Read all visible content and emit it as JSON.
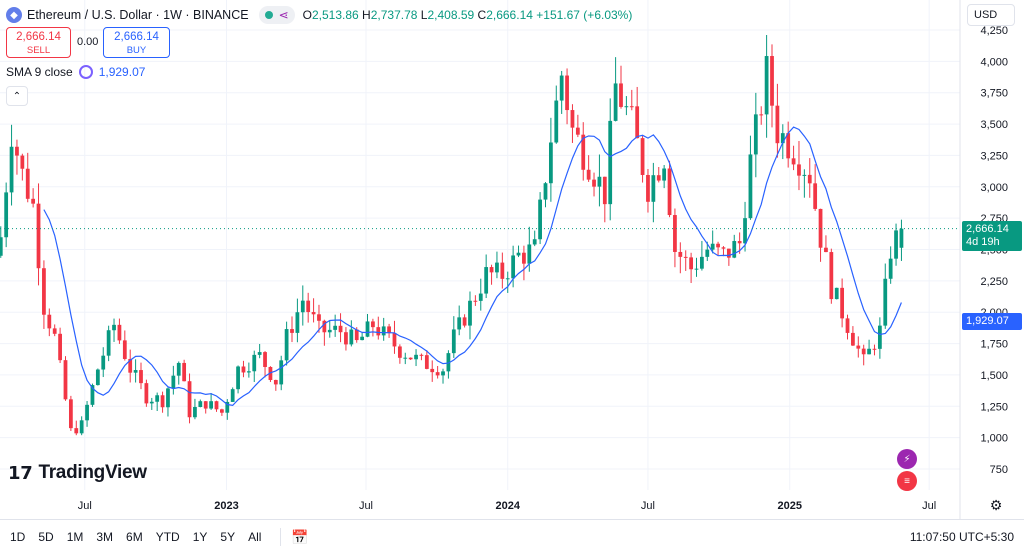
{
  "header": {
    "symbol_icon": "ethereum-icon",
    "title": "Ethereum / U.S. Dollar · 1W · BINANCE",
    "ohlc": {
      "o_label": "O",
      "o": "2,513.86",
      "h_label": "H",
      "h": "2,737.78",
      "l_label": "L",
      "l": "2,408.59",
      "c_label": "C",
      "c": "2,666.14",
      "change": "+151.67 (+6.03%)"
    },
    "currency": "USD"
  },
  "trade": {
    "sell_price": "2,666.14",
    "sell_label": "SELL",
    "spread": "0.00",
    "buy_price": "2,666.14",
    "buy_label": "BUY"
  },
  "indicator": {
    "label": "SMA 9 close",
    "value": "1,929.07"
  },
  "price_tags": {
    "current": "2,666.14",
    "countdown": "4d 19h",
    "sma": "1,929.07"
  },
  "logo_text": "TradingView",
  "ranges": [
    "1D",
    "5D",
    "1M",
    "3M",
    "6M",
    "YTD",
    "1Y",
    "5Y",
    "All"
  ],
  "clock": "11:07:50 UTC+5:30",
  "colors": {
    "up": "#089981",
    "down": "#f23645",
    "sma": "#2962ff"
  },
  "chart_data": {
    "type": "candlestick",
    "title": "Ethereum / U.S. Dollar · 1W · BINANCE",
    "ylim": [
      600,
      4300
    ],
    "y_ticks": [
      750,
      1000,
      1250,
      1500,
      1750,
      2000,
      2250,
      2500,
      2750,
      3000,
      3250,
      3500,
      3750,
      4000,
      4250
    ],
    "x_ticks": [
      {
        "date": "2022-07-01",
        "label": "Jul"
      },
      {
        "date": "2023-01-01",
        "label": "2023"
      },
      {
        "date": "2023-07-01",
        "label": "Jul"
      },
      {
        "date": "2024-01-01",
        "label": "2024"
      },
      {
        "date": "2024-07-01",
        "label": "Jul"
      },
      {
        "date": "2025-01-01",
        "label": "2025"
      },
      {
        "date": "2025-07-01",
        "label": "Jul"
      }
    ],
    "xlim": [
      "2022-03-13",
      "2025-08-10"
    ],
    "current_price": 2666.14,
    "grid": true,
    "series": [
      {
        "name": "SMA 9 close",
        "values_key": "sma"
      }
    ],
    "anchors": [
      {
        "date": "2022-03-14",
        "close": 2600
      },
      {
        "date": "2022-03-28",
        "close": 3450
      },
      {
        "date": "2022-04-11",
        "close": 3100
      },
      {
        "date": "2022-04-25",
        "close": 2850
      },
      {
        "date": "2022-05-09",
        "close": 2050
      },
      {
        "date": "2022-05-23",
        "close": 1800
      },
      {
        "date": "2022-06-13",
        "close": 1050
      },
      {
        "date": "2022-06-27",
        "close": 1100
      },
      {
        "date": "2022-07-18",
        "close": 1550
      },
      {
        "date": "2022-08-08",
        "close": 1900
      },
      {
        "date": "2022-08-29",
        "close": 1550
      },
      {
        "date": "2022-09-19",
        "close": 1330
      },
      {
        "date": "2022-10-10",
        "close": 1300
      },
      {
        "date": "2022-10-31",
        "close": 1600
      },
      {
        "date": "2022-11-14",
        "close": 1200
      },
      {
        "date": "2022-12-05",
        "close": 1280
      },
      {
        "date": "2022-12-26",
        "close": 1200
      },
      {
        "date": "2023-01-16",
        "close": 1550
      },
      {
        "date": "2023-02-13",
        "close": 1650
      },
      {
        "date": "2023-03-06",
        "close": 1450
      },
      {
        "date": "2023-03-20",
        "close": 1800
      },
      {
        "date": "2023-04-10",
        "close": 2100
      },
      {
        "date": "2023-05-01",
        "close": 1850
      },
      {
        "date": "2023-05-29",
        "close": 1850
      },
      {
        "date": "2023-06-19",
        "close": 1750
      },
      {
        "date": "2023-07-10",
        "close": 1900
      },
      {
        "date": "2023-08-14",
        "close": 1700
      },
      {
        "date": "2023-09-11",
        "close": 1600
      },
      {
        "date": "2023-10-09",
        "close": 1550
      },
      {
        "date": "2023-10-23",
        "close": 1800
      },
      {
        "date": "2023-11-13",
        "close": 2050
      },
      {
        "date": "2023-12-04",
        "close": 2300
      },
      {
        "date": "2023-12-25",
        "close": 2300
      },
      {
        "date": "2024-01-15",
        "close": 2450
      },
      {
        "date": "2024-02-05",
        "close": 2500
      },
      {
        "date": "2024-02-26",
        "close": 3400
      },
      {
        "date": "2024-03-11",
        "close": 3900
      },
      {
        "date": "2024-03-25",
        "close": 3450
      },
      {
        "date": "2024-04-15",
        "close": 3200
      },
      {
        "date": "2024-05-06",
        "close": 2950
      },
      {
        "date": "2024-05-20",
        "close": 3800
      },
      {
        "date": "2024-06-10",
        "close": 3500
      },
      {
        "date": "2024-07-01",
        "close": 3000
      },
      {
        "date": "2024-07-22",
        "close": 3250
      },
      {
        "date": "2024-08-05",
        "close": 2500
      },
      {
        "date": "2024-08-26",
        "close": 2350
      },
      {
        "date": "2024-09-16",
        "close": 2500
      },
      {
        "date": "2024-10-07",
        "close": 2450
      },
      {
        "date": "2024-10-28",
        "close": 2550
      },
      {
        "date": "2024-11-11",
        "close": 3200
      },
      {
        "date": "2024-12-02",
        "close": 3900
      },
      {
        "date": "2024-12-16",
        "close": 3450
      },
      {
        "date": "2025-01-06",
        "close": 3300
      },
      {
        "date": "2025-01-27",
        "close": 3100
      },
      {
        "date": "2025-02-10",
        "close": 2600
      },
      {
        "date": "2025-02-24",
        "close": 2200
      },
      {
        "date": "2025-03-17",
        "close": 1900
      },
      {
        "date": "2025-04-07",
        "close": 1600
      },
      {
        "date": "2025-04-28",
        "close": 1850
      },
      {
        "date": "2025-05-12",
        "close": 2500
      },
      {
        "date": "2025-05-26",
        "close": 2666.14
      }
    ]
  }
}
